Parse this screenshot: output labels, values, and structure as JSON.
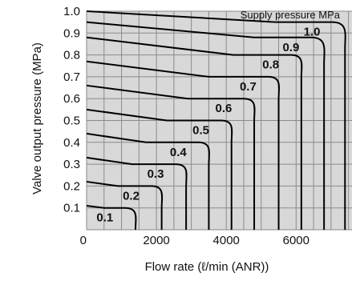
{
  "chart_data": {
    "type": "line",
    "xlabel": "Flow rate (ℓ/min (ANR))",
    "ylabel": "Valve output pressure (MPa)",
    "legend_title": "Supply pressure MPa",
    "xlim": [
      0,
      7600
    ],
    "ylim": [
      0,
      1.0
    ],
    "xticks": [
      0,
      2000,
      4000,
      6000
    ],
    "xtick_labels": [
      "0",
      "2000",
      "4000",
      "6000"
    ],
    "yticks": [
      0.1,
      0.2,
      0.3,
      0.4,
      0.5,
      0.6,
      0.7,
      0.8,
      0.9,
      1.0
    ],
    "ytick_labels": [
      "0.1",
      "0.2",
      "0.3",
      "0.4",
      "0.5",
      "0.6",
      "0.7",
      "0.8",
      "0.9",
      "1.0"
    ],
    "grid": true,
    "colors": {
      "plot_bg": "#d8d8d8",
      "grid": "#8a8a8a",
      "line": "#000000"
    },
    "series": [
      {
        "name": "0.1",
        "knee_x": 500,
        "corner_x": 1200,
        "max_x": 1400,
        "points": [
          [
            0,
            0.11
          ],
          [
            1000,
            0.1
          ],
          [
            1350,
            0.05
          ],
          [
            1400,
            0
          ]
        ]
      },
      {
        "name": "0.2",
        "knee_x": 900,
        "corner_x": 1950,
        "max_x": 2150,
        "points": [
          [
            0,
            0.22
          ],
          [
            1500,
            0.2
          ],
          [
            2100,
            0.1
          ],
          [
            2150,
            0
          ]
        ]
      },
      {
        "name": "0.3",
        "knee_x": 1300,
        "corner_x": 2650,
        "max_x": 2850,
        "points": [
          [
            0,
            0.33
          ],
          [
            2200,
            0.3
          ],
          [
            2800,
            0.15
          ],
          [
            2850,
            0
          ]
        ]
      },
      {
        "name": "0.4",
        "knee_x": 1700,
        "corner_x": 3300,
        "max_x": 3500,
        "points": [
          [
            0,
            0.44
          ],
          [
            2800,
            0.4
          ],
          [
            3450,
            0.2
          ],
          [
            3500,
            0
          ]
        ]
      },
      {
        "name": "0.5",
        "knee_x": 2300,
        "corner_x": 3950,
        "max_x": 4150,
        "points": [
          [
            0,
            0.55
          ],
          [
            3400,
            0.5
          ],
          [
            4100,
            0.25
          ],
          [
            4150,
            0
          ]
        ]
      },
      {
        "name": "0.6",
        "knee_x": 2900,
        "corner_x": 4600,
        "max_x": 4800,
        "points": [
          [
            0,
            0.66
          ],
          [
            4000,
            0.6
          ],
          [
            4750,
            0.3
          ],
          [
            4800,
            0
          ]
        ]
      },
      {
        "name": "0.7",
        "knee_x": 3500,
        "corner_x": 5300,
        "max_x": 5500,
        "points": [
          [
            0,
            0.77
          ],
          [
            4600,
            0.7
          ],
          [
            5450,
            0.35
          ],
          [
            5500,
            0
          ]
        ]
      },
      {
        "name": "0.8",
        "knee_x": 4200,
        "corner_x": 5950,
        "max_x": 6150,
        "points": [
          [
            0,
            0.88
          ],
          [
            5200,
            0.8
          ],
          [
            6100,
            0.4
          ],
          [
            6150,
            0
          ]
        ]
      },
      {
        "name": "0.9",
        "knee_x": 4800,
        "corner_x": 6550,
        "max_x": 6800,
        "points": [
          [
            0,
            0.95
          ],
          [
            5900,
            0.88
          ],
          [
            6750,
            0.45
          ],
          [
            6800,
            0
          ]
        ]
      },
      {
        "name": "1.0",
        "knee_x": 5400,
        "corner_x": 7150,
        "max_x": 7400,
        "points": [
          [
            0,
            1.0
          ],
          [
            6500,
            0.95
          ],
          [
            7350,
            0.5
          ],
          [
            7400,
            0
          ]
        ]
      }
    ]
  }
}
